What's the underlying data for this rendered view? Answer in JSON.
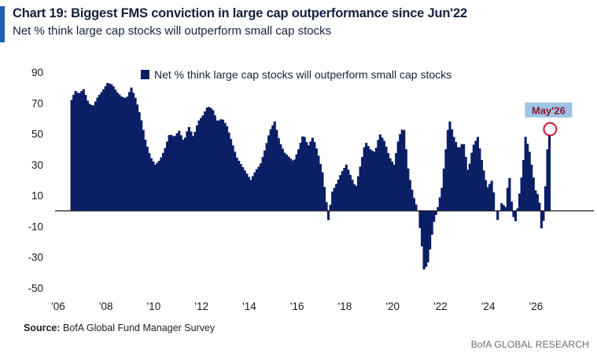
{
  "header": {
    "title": "Chart 19: Biggest FMS conviction in large cap outperformance since Jun'22",
    "subtitle": "Net % think large cap stocks will outperform small cap stocks"
  },
  "footer": {
    "source_label": "Source:",
    "source_text": " BofA Global Fund Manager Survey",
    "brand": "BofA GLOBAL RESEARCH"
  },
  "colors": {
    "bar": "#0b1f66",
    "accent_bar": "#1f5fb0",
    "annotation": "#c8102e",
    "annotation_bg": "#9dc3e6"
  },
  "chart_data": {
    "type": "bar",
    "title": "Chart 19: Biggest FMS conviction in large cap outperformance since Jun'22",
    "xlabel": "",
    "ylabel": "",
    "ylim": [
      -50,
      90
    ],
    "yticks": [
      90,
      70,
      50,
      30,
      10,
      -10,
      -30,
      -50
    ],
    "xlim": [
      2006,
      2027.6
    ],
    "xticks": [
      {
        "value": 2006,
        "label": "'06"
      },
      {
        "value": 2008,
        "label": "'08"
      },
      {
        "value": 2010,
        "label": "'10"
      },
      {
        "value": 2012,
        "label": "'12"
      },
      {
        "value": 2014,
        "label": "'14"
      },
      {
        "value": 2016,
        "label": "'16"
      },
      {
        "value": 2018,
        "label": "'18"
      },
      {
        "value": 2020,
        "label": "'20"
      },
      {
        "value": 2022,
        "label": "'22"
      },
      {
        "value": 2024,
        "label": "'24"
      },
      {
        "value": 2026,
        "label": "'26"
      }
    ],
    "grid": false,
    "legend_position": "top",
    "series": [
      {
        "name": "Net % think large cap stocks will outperform small cap stocks",
        "anchors": [
          [
            2006.3,
            72
          ],
          [
            2006.45,
            78
          ],
          [
            2006.6,
            76
          ],
          [
            2006.8,
            79
          ],
          [
            2007.0,
            70
          ],
          [
            2007.2,
            68
          ],
          [
            2007.4,
            74
          ],
          [
            2007.6,
            78
          ],
          [
            2007.8,
            83
          ],
          [
            2008.0,
            82
          ],
          [
            2008.2,
            77
          ],
          [
            2008.4,
            74
          ],
          [
            2008.6,
            73
          ],
          [
            2008.8,
            80
          ],
          [
            2009.0,
            72
          ],
          [
            2009.2,
            60
          ],
          [
            2009.4,
            45
          ],
          [
            2009.6,
            35
          ],
          [
            2009.8,
            30
          ],
          [
            2010.0,
            33
          ],
          [
            2010.2,
            40
          ],
          [
            2010.4,
            50
          ],
          [
            2010.6,
            48
          ],
          [
            2010.8,
            52
          ],
          [
            2011.0,
            45
          ],
          [
            2011.2,
            55
          ],
          [
            2011.4,
            48
          ],
          [
            2011.6,
            58
          ],
          [
            2011.8,
            62
          ],
          [
            2012.0,
            68
          ],
          [
            2012.2,
            66
          ],
          [
            2012.4,
            58
          ],
          [
            2012.6,
            60
          ],
          [
            2012.8,
            55
          ],
          [
            2013.0,
            45
          ],
          [
            2013.2,
            35
          ],
          [
            2013.4,
            30
          ],
          [
            2013.6,
            25
          ],
          [
            2013.8,
            20
          ],
          [
            2014.0,
            26
          ],
          [
            2014.2,
            30
          ],
          [
            2014.4,
            40
          ],
          [
            2014.6,
            52
          ],
          [
            2014.8,
            58
          ],
          [
            2015.0,
            45
          ],
          [
            2015.2,
            38
          ],
          [
            2015.4,
            35
          ],
          [
            2015.6,
            32
          ],
          [
            2015.8,
            40
          ],
          [
            2016.0,
            50
          ],
          [
            2016.2,
            42
          ],
          [
            2016.4,
            48
          ],
          [
            2016.6,
            38
          ],
          [
            2016.8,
            25
          ],
          [
            2016.95,
            8
          ],
          [
            2017.05,
            -6
          ],
          [
            2017.2,
            12
          ],
          [
            2017.4,
            18
          ],
          [
            2017.6,
            25
          ],
          [
            2017.8,
            30
          ],
          [
            2018.0,
            22
          ],
          [
            2018.2,
            15
          ],
          [
            2018.4,
            30
          ],
          [
            2018.6,
            45
          ],
          [
            2018.8,
            40
          ],
          [
            2019.0,
            38
          ],
          [
            2019.2,
            50
          ],
          [
            2019.4,
            45
          ],
          [
            2019.6,
            35
          ],
          [
            2019.8,
            30
          ],
          [
            2020.0,
            48
          ],
          [
            2020.2,
            55
          ],
          [
            2020.4,
            25
          ],
          [
            2020.6,
            10
          ],
          [
            2020.8,
            0
          ],
          [
            2020.95,
            -20
          ],
          [
            2021.05,
            -38
          ],
          [
            2021.2,
            -35
          ],
          [
            2021.3,
            -25
          ],
          [
            2021.45,
            -8
          ],
          [
            2021.6,
            0
          ],
          [
            2021.8,
            15
          ],
          [
            2022.0,
            45
          ],
          [
            2022.1,
            60
          ],
          [
            2022.3,
            48
          ],
          [
            2022.5,
            40
          ],
          [
            2022.7,
            45
          ],
          [
            2022.9,
            25
          ],
          [
            2023.1,
            42
          ],
          [
            2023.3,
            48
          ],
          [
            2023.5,
            30
          ],
          [
            2023.7,
            15
          ],
          [
            2023.9,
            20
          ],
          [
            2024.0,
            8
          ],
          [
            2024.1,
            -8
          ],
          [
            2024.3,
            5
          ],
          [
            2024.5,
            2
          ],
          [
            2024.6,
            28
          ],
          [
            2024.7,
            8
          ],
          [
            2024.85,
            -10
          ],
          [
            2025.0,
            5
          ],
          [
            2025.2,
            30
          ],
          [
            2025.3,
            48
          ],
          [
            2025.45,
            40
          ],
          [
            2025.6,
            25
          ],
          [
            2025.75,
            10
          ],
          [
            2025.85,
            12
          ],
          [
            2026.0,
            -18
          ],
          [
            2026.1,
            5
          ],
          [
            2026.2,
            38
          ],
          [
            2026.33,
            53
          ]
        ]
      }
    ],
    "annotations": [
      {
        "label": "May'26",
        "x": 2026.33,
        "y": 53
      }
    ]
  }
}
